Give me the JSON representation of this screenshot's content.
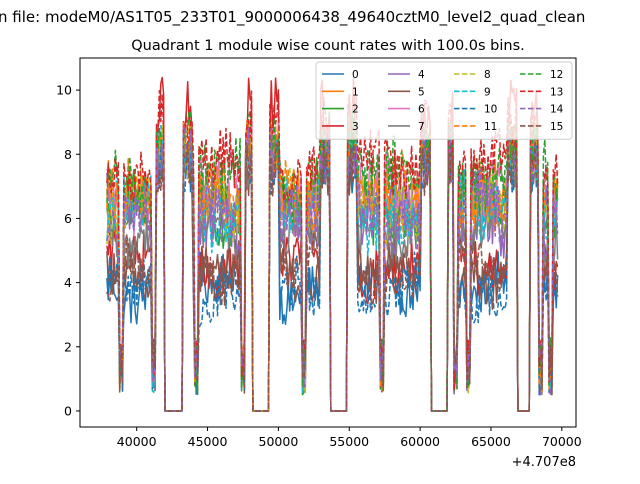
{
  "chart_data": {
    "type": "line",
    "suptitle": "n file: modeM0/AS1T05_233T01_9000006438_49640cztM0_level2_quad_clean",
    "title": "Quadrant 1 module wise count rates with 100.0s bins.",
    "xlabel": "",
    "ylabel": "",
    "x_offset_label": "+4.707e8",
    "xlim": [
      36000,
      71000
    ],
    "ylim": [
      -0.5,
      11
    ],
    "xticks": [
      40000,
      45000,
      50000,
      55000,
      60000,
      65000,
      70000
    ],
    "yticks": [
      0,
      2,
      4,
      6,
      8,
      10
    ],
    "grid": false,
    "legend_position": "top-right",
    "legend_columns": 4,
    "series": [
      {
        "name": "0",
        "color": "#1f77b4",
        "dash": "solid",
        "base": 3.9,
        "amp": 0.7,
        "peak": 8.6
      },
      {
        "name": "1",
        "color": "#ff7f0e",
        "dash": "solid",
        "base": 6.6,
        "amp": 0.9,
        "peak": 9.2
      },
      {
        "name": "2",
        "color": "#2ca02c",
        "dash": "solid",
        "base": 6.4,
        "amp": 0.9,
        "peak": 9.0
      },
      {
        "name": "3",
        "color": "#d62728",
        "dash": "solid",
        "base": 4.6,
        "amp": 0.8,
        "peak": 10.4
      },
      {
        "name": "4",
        "color": "#9467bd",
        "dash": "solid",
        "base": 6.2,
        "amp": 0.9,
        "peak": 8.8
      },
      {
        "name": "5",
        "color": "#8c564b",
        "dash": "solid",
        "base": 4.3,
        "amp": 0.7,
        "peak": 8.4
      },
      {
        "name": "6",
        "color": "#e377c2",
        "dash": "solid",
        "base": 6.8,
        "amp": 0.9,
        "peak": 9.1
      },
      {
        "name": "7",
        "color": "#7f7f7f",
        "dash": "solid",
        "base": 5.6,
        "amp": 0.8,
        "peak": 8.7
      },
      {
        "name": "8",
        "color": "#bcbd22",
        "dash": "dashed",
        "base": 6.5,
        "amp": 0.9,
        "peak": 9.0
      },
      {
        "name": "9",
        "color": "#17becf",
        "dash": "dashed",
        "base": 6.3,
        "amp": 0.9,
        "peak": 8.9
      },
      {
        "name": "10",
        "color": "#1f77b4",
        "dash": "dashed",
        "base": 3.7,
        "amp": 0.7,
        "peak": 8.5
      },
      {
        "name": "11",
        "color": "#ff7f0e",
        "dash": "dashed",
        "base": 6.7,
        "amp": 0.9,
        "peak": 9.2
      },
      {
        "name": "12",
        "color": "#2ca02c",
        "dash": "dashed",
        "base": 7.2,
        "amp": 0.9,
        "peak": 9.4
      },
      {
        "name": "13",
        "color": "#d62728",
        "dash": "dashed",
        "base": 7.6,
        "amp": 0.8,
        "peak": 10.1
      },
      {
        "name": "14",
        "color": "#9467bd",
        "dash": "dashed",
        "base": 6.1,
        "amp": 0.9,
        "peak": 8.9
      },
      {
        "name": "15",
        "color": "#8c564b",
        "dash": "dashed",
        "base": 4.4,
        "amp": 0.7,
        "peak": 8.5
      }
    ],
    "zero_intervals": [
      [
        42000,
        43200
      ],
      [
        48200,
        49300
      ],
      [
        53700,
        54800
      ],
      [
        60800,
        61900
      ],
      [
        66900,
        67700
      ]
    ],
    "dip_points": [
      38900,
      41200,
      44200,
      47500,
      51800,
      57300,
      62500,
      63400,
      68500,
      69200
    ]
  }
}
